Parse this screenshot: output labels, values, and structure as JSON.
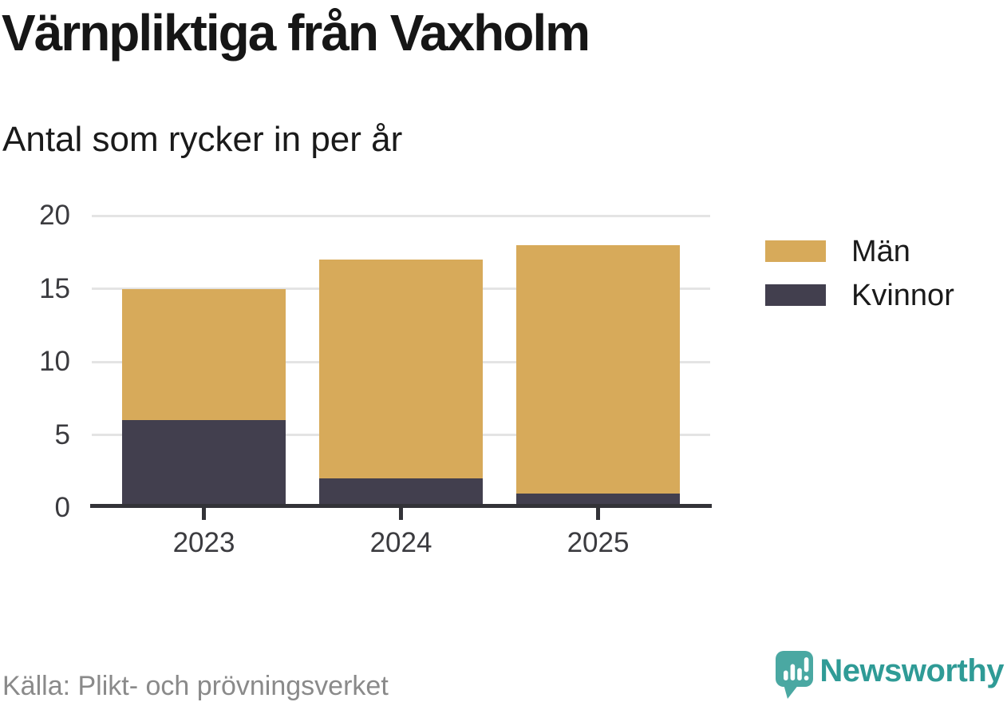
{
  "header": {
    "title": "Värnpliktiga från Vaxholm",
    "subtitle": "Antal som rycker in per år"
  },
  "chart_data": {
    "type": "bar",
    "stacked": true,
    "title": "Värnpliktiga från Vaxholm",
    "subtitle": "Antal som rycker in per år",
    "categories": [
      "2023",
      "2024",
      "2025"
    ],
    "series": [
      {
        "name": "Män",
        "color": "#d7aa5a",
        "values": [
          9,
          15,
          17
        ]
      },
      {
        "name": "Kvinnor",
        "color": "#423f4e",
        "values": [
          6,
          2,
          1
        ]
      }
    ],
    "stack_order_bottom_up": [
      "Kvinnor",
      "Män"
    ],
    "stacked_totals": [
      15,
      17,
      18
    ],
    "xlabel": "",
    "ylabel": "",
    "ylim": [
      0,
      20
    ],
    "y_ticks": [
      0,
      5,
      10,
      15,
      20
    ],
    "grid": true,
    "legend_position": "right"
  },
  "legend": {
    "items": [
      {
        "label": "Män",
        "color": "#d7aa5a"
      },
      {
        "label": "Kvinnor",
        "color": "#423f4e"
      }
    ]
  },
  "footer": {
    "source": "Källa: Plikt- och prövningsverket",
    "brand": "Newsworthy"
  },
  "colors": {
    "man": "#d7aa5a",
    "kvinnor": "#423f4e",
    "axis": "#333338",
    "grid": "#e4e4e4",
    "tick_text": "#3b3b3f",
    "source_text": "#8a8a8a",
    "brand_teal": "#2f9b96",
    "brand_icon_teal": "#4aa8a2",
    "background": "#ffffff"
  }
}
